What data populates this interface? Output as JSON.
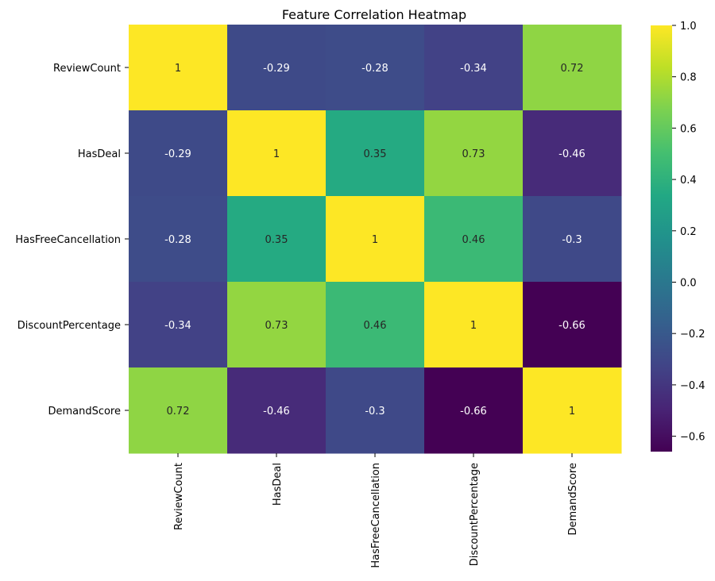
{
  "chart_data": {
    "type": "heatmap",
    "title": "Feature Correlation Heatmap",
    "row_labels": [
      "ReviewCount",
      "HasDeal",
      "HasFreeCancellation",
      "DiscountPercentage",
      "DemandScore"
    ],
    "col_labels": [
      "ReviewCount",
      "HasDeal",
      "HasFreeCancellation",
      "DiscountPercentage",
      "DemandScore"
    ],
    "values": [
      [
        1,
        -0.29,
        -0.28,
        -0.34,
        0.72
      ],
      [
        -0.29,
        1,
        0.35,
        0.73,
        -0.46
      ],
      [
        -0.28,
        0.35,
        1,
        0.46,
        -0.3
      ],
      [
        -0.34,
        0.73,
        0.46,
        1,
        -0.66
      ],
      [
        0.72,
        -0.46,
        -0.3,
        -0.66,
        1
      ]
    ],
    "colormap": "viridis",
    "colorbar": {
      "vmin": -0.66,
      "vmax": 1,
      "ticks": [
        1.0,
        0.8,
        0.6,
        0.4,
        0.2,
        0.0,
        -0.2,
        -0.4,
        -0.6
      ],
      "tick_labels": [
        "1.0",
        "0.8",
        "0.6",
        "0.4",
        "0.2",
        "0.0",
        "−0.2",
        "−0.4",
        "−0.6"
      ]
    },
    "annotations": true,
    "grid": false
  }
}
